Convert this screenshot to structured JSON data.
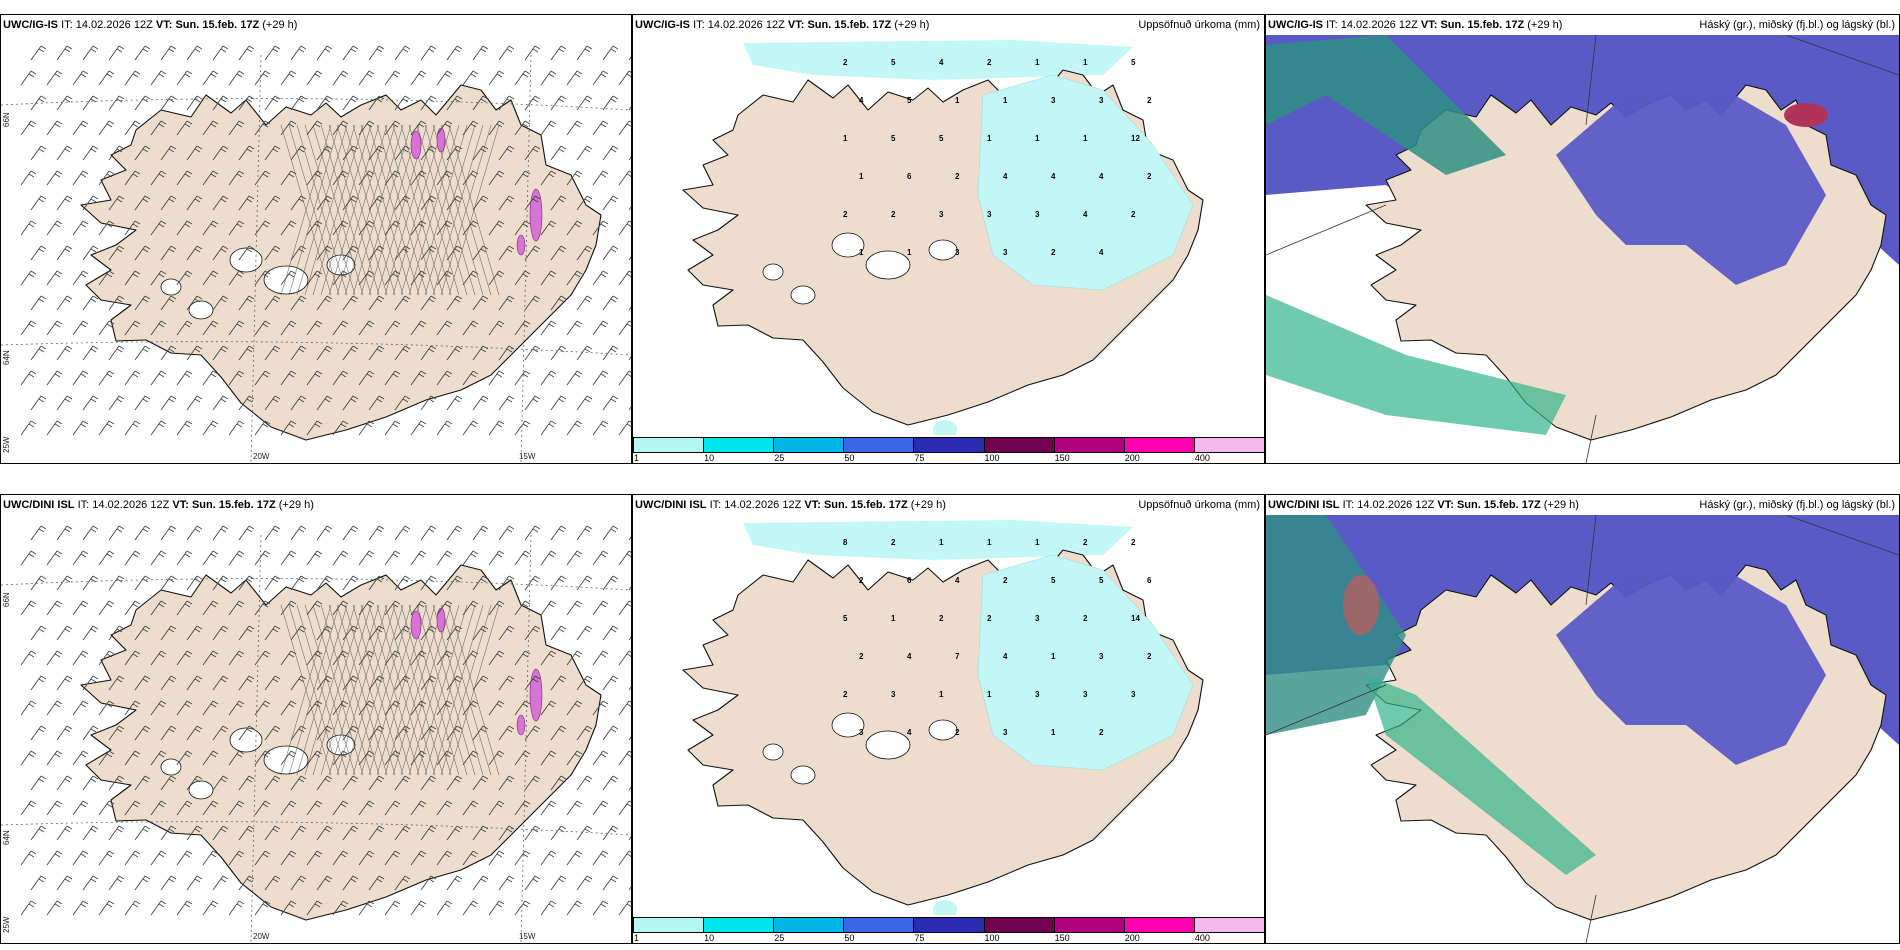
{
  "rows": [
    {
      "model": "UWC/IG-IS",
      "it_label": "IT:",
      "it_value": "14.02.2026 12Z",
      "vt_label": "VT:",
      "vt_value": "Sun. 15.feb. 17Z",
      "lead": "(+29 h)",
      "precip_numbers": [
        "2",
        "5",
        "4",
        "2",
        "1",
        "1",
        "5",
        "4",
        "5",
        "1",
        "1",
        "3",
        "3",
        "2",
        "1",
        "5",
        "5",
        "1",
        "1",
        "1",
        "12",
        "1",
        "6",
        "2",
        "4",
        "4",
        "4",
        "2",
        "2",
        "2",
        "3",
        "3",
        "3",
        "4",
        "2",
        "1",
        "1",
        "3",
        "3",
        "2",
        "4"
      ]
    },
    {
      "model": "UWC/DINI ISL",
      "it_label": "IT:",
      "it_value": "14.02.2026 12Z",
      "vt_label": "VT:",
      "vt_value": "Sun. 15.feb. 17Z",
      "lead": "(+29 h)",
      "precip_numbers": [
        "8",
        "2",
        "1",
        "1",
        "1",
        "2",
        "2",
        "2",
        "6",
        "4",
        "2",
        "5",
        "5",
        "6",
        "5",
        "1",
        "2",
        "2",
        "3",
        "2",
        "14",
        "2",
        "4",
        "7",
        "4",
        "1",
        "3",
        "2",
        "2",
        "3",
        "1",
        "1",
        "3",
        "3",
        "3",
        "3",
        "4",
        "2",
        "3",
        "1",
        "2"
      ]
    }
  ],
  "precip_title": "Uppsöfnuð úrkoma (mm)",
  "cloud_title": "Háský (gr.), miðský (fj.bl.) og lágský (bl.)",
  "colorbar": {
    "ticks": [
      "1",
      "10",
      "25",
      "50",
      "75",
      "100",
      "150",
      "200",
      "400"
    ],
    "colors": [
      "#b3f7f4",
      "#00e6ec",
      "#00b6e6",
      "#3a67e6",
      "#2b2bb0",
      "#700050",
      "#b0007e",
      "#ff00b0",
      "#f7b8ee"
    ]
  },
  "wind_axis_labels": {
    "lat66": "66N",
    "lat64": "64N",
    "lon25": "25W",
    "lon20": "20W",
    "lon15": "15W"
  },
  "colors": {
    "land": "#eeddcc",
    "ice_free": "#ffffff",
    "precip_light": "#c3f7f7",
    "cloud_high": "#5a5ac6",
    "cloud_mid": "#33b38a",
    "cloud_sea": "#2f8f84",
    "snow_pink": "#d873d6"
  }
}
